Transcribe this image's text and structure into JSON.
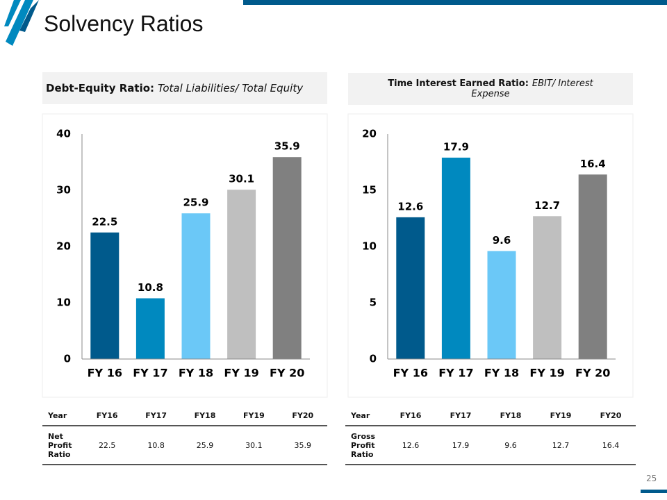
{
  "title": "Solvency Ratios",
  "page_number": "25",
  "chart_data": [
    {
      "type": "bar",
      "heading": {
        "label": "Debt-Equity Ratio:",
        "formula": "Total Liabilities/ Total Equity"
      },
      "categories": [
        "FY 16",
        "FY 17",
        "FY 18",
        "FY 19",
        "FY 20"
      ],
      "values": [
        22.5,
        10.8,
        25.9,
        30.1,
        35.9
      ],
      "colors": [
        "#005a8c",
        "#0089bf",
        "#6bc8f7",
        "#bfbfbf",
        "#808080"
      ],
      "ylim": [
        0,
        40
      ],
      "yticks": [
        0,
        10,
        20,
        30,
        40
      ],
      "grid": false
    },
    {
      "type": "bar",
      "heading": {
        "label": "Time Interest Earned Ratio:",
        "formula": "EBIT/ Interest Expense"
      },
      "categories": [
        "FY 16",
        "FY 17",
        "FY 18",
        "FY 19",
        "FY 20"
      ],
      "values": [
        12.6,
        17.9,
        9.6,
        12.7,
        16.4
      ],
      "colors": [
        "#005a8c",
        "#0089bf",
        "#6bc8f7",
        "#bfbfbf",
        "#808080"
      ],
      "ylim": [
        0,
        20
      ],
      "yticks": [
        0,
        5,
        10,
        15,
        20
      ],
      "grid": false
    }
  ],
  "tables": [
    {
      "header": [
        "Year",
        "FY16",
        "FY17",
        "FY18",
        "FY19",
        "FY20"
      ],
      "rows": [
        [
          "Net Profit Ratio",
          22.5,
          10.8,
          25.9,
          30.1,
          35.9
        ]
      ]
    },
    {
      "header": [
        "Year",
        "FY16",
        "FY17",
        "FY18",
        "FY19",
        "FY20"
      ],
      "rows": [
        [
          "Gross Profit Ratio",
          12.6,
          17.9,
          9.6,
          12.7,
          16.4
        ]
      ]
    }
  ]
}
